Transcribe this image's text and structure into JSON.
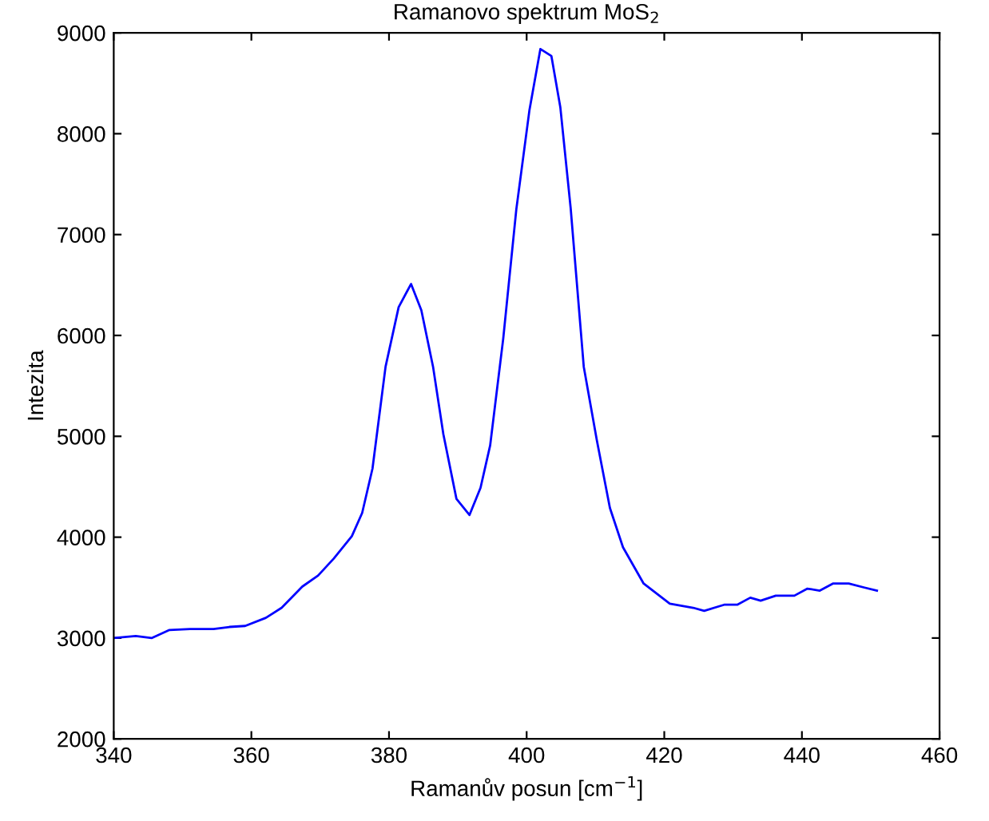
{
  "chart_data": {
    "type": "line",
    "title": "Ramanovo spektrum MoS$_{2}$",
    "xlabel": "Ramanův posun [cm$^{−1}$]",
    "ylabel": "Intezita",
    "xlim": [
      340,
      460
    ],
    "xticks": [
      340,
      360,
      380,
      400,
      420,
      440,
      460
    ],
    "ylim": [
      2000,
      9000
    ],
    "yticks": [
      2000,
      3000,
      4000,
      5000,
      6000,
      7000,
      8000,
      9000
    ],
    "grid": false,
    "legend": false,
    "series": [
      {
        "color": "#0000ff",
        "x": [
          340,
          343.2,
          345.5,
          348.1,
          351.1,
          354.5,
          356.8,
          359.1,
          362.1,
          364.4,
          367.4,
          369.7,
          372,
          374.6,
          376.1,
          377.6,
          379.5,
          381.4,
          383.2,
          384.7,
          386.4,
          387.9,
          389.8,
          391.7,
          393.3,
          394.7,
          396.6,
          398.5,
          400.4,
          402.0,
          403.6,
          404.9,
          406.4,
          408.3,
          410.2,
          412.1,
          414,
          417,
          420.8,
          424.2,
          425.8,
          428.7,
          430.6,
          432.5,
          434,
          436.2,
          438.9,
          440.8,
          442.6,
          444.5,
          446.8,
          449.1,
          450.9
        ],
        "values": [
          3000,
          3020,
          3000,
          3080,
          3090,
          3090,
          3110,
          3120,
          3200,
          3300,
          3510,
          3620,
          3790,
          4010,
          4240,
          4680,
          5690,
          6280,
          6510,
          6250,
          5690,
          5020,
          4380,
          4220,
          4490,
          4910,
          5970,
          7250,
          8230,
          8840,
          8770,
          8260,
          7260,
          5690,
          4960,
          4290,
          3900,
          3540,
          3340,
          3300,
          3270,
          3330,
          3330,
          3400,
          3370,
          3420,
          3420,
          3490,
          3470,
          3540,
          3540,
          3500,
          3470
        ]
      }
    ]
  }
}
